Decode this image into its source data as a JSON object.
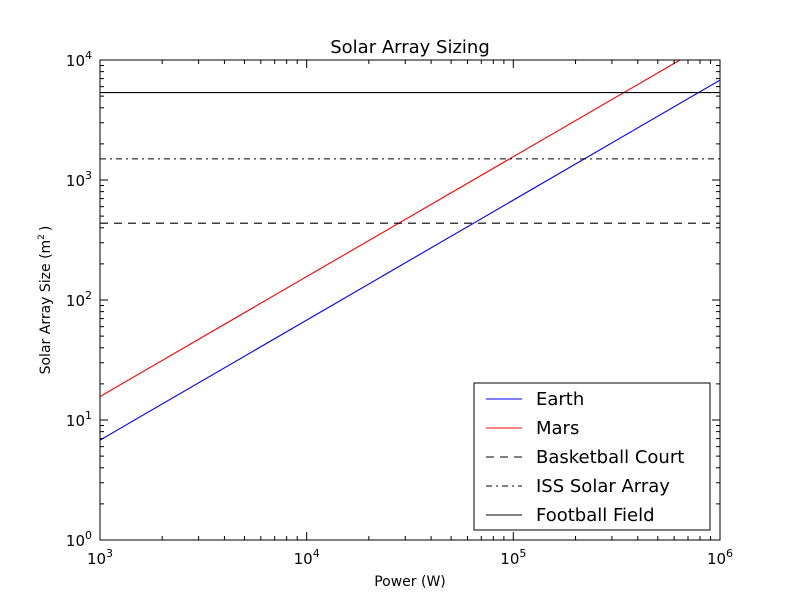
{
  "chart_data": {
    "type": "line",
    "title": "Solar Array Sizing",
    "xlabel": "Power (W)",
    "ylabel_prefix": "Solar Array Size (m",
    "ylabel_sup": "2",
    "ylabel_suffix": ")",
    "xscale": "log",
    "yscale": "log",
    "xlim": [
      1000,
      1000000
    ],
    "ylim": [
      1,
      10000
    ],
    "grid": false,
    "legend_position": "lower-right",
    "x_ticks": [
      {
        "value": 1000,
        "base": "10",
        "exp": "3"
      },
      {
        "value": 10000,
        "base": "10",
        "exp": "4"
      },
      {
        "value": 100000,
        "base": "10",
        "exp": "5"
      },
      {
        "value": 1000000,
        "base": "10",
        "exp": "6"
      }
    ],
    "y_ticks": [
      {
        "value": 1,
        "base": "10",
        "exp": "0"
      },
      {
        "value": 10,
        "base": "10",
        "exp": "1"
      },
      {
        "value": 100,
        "base": "10",
        "exp": "2"
      },
      {
        "value": 1000,
        "base": "10",
        "exp": "3"
      },
      {
        "value": 10000,
        "base": "10",
        "exp": "4"
      }
    ],
    "series": [
      {
        "name": "Earth",
        "kind": "line",
        "color": "#0000ff",
        "dash": "solid",
        "x": [
          1000,
          1000000
        ],
        "y": [
          6.8,
          6800
        ]
      },
      {
        "name": "Mars",
        "kind": "line",
        "color": "#ff0000",
        "dash": "solid",
        "x": [
          1000,
          640000
        ],
        "y": [
          15.7,
          10000
        ]
      },
      {
        "name": "Basketball Court",
        "kind": "hline",
        "color": "#000000",
        "dash": "dashed",
        "y": 437
      },
      {
        "name": "ISS Solar Array",
        "kind": "hline",
        "color": "#000000",
        "dash": "dashdot",
        "y": 1500
      },
      {
        "name": "Football Field",
        "kind": "hline",
        "color": "#000000",
        "dash": "solid",
        "y": 5350
      }
    ]
  }
}
